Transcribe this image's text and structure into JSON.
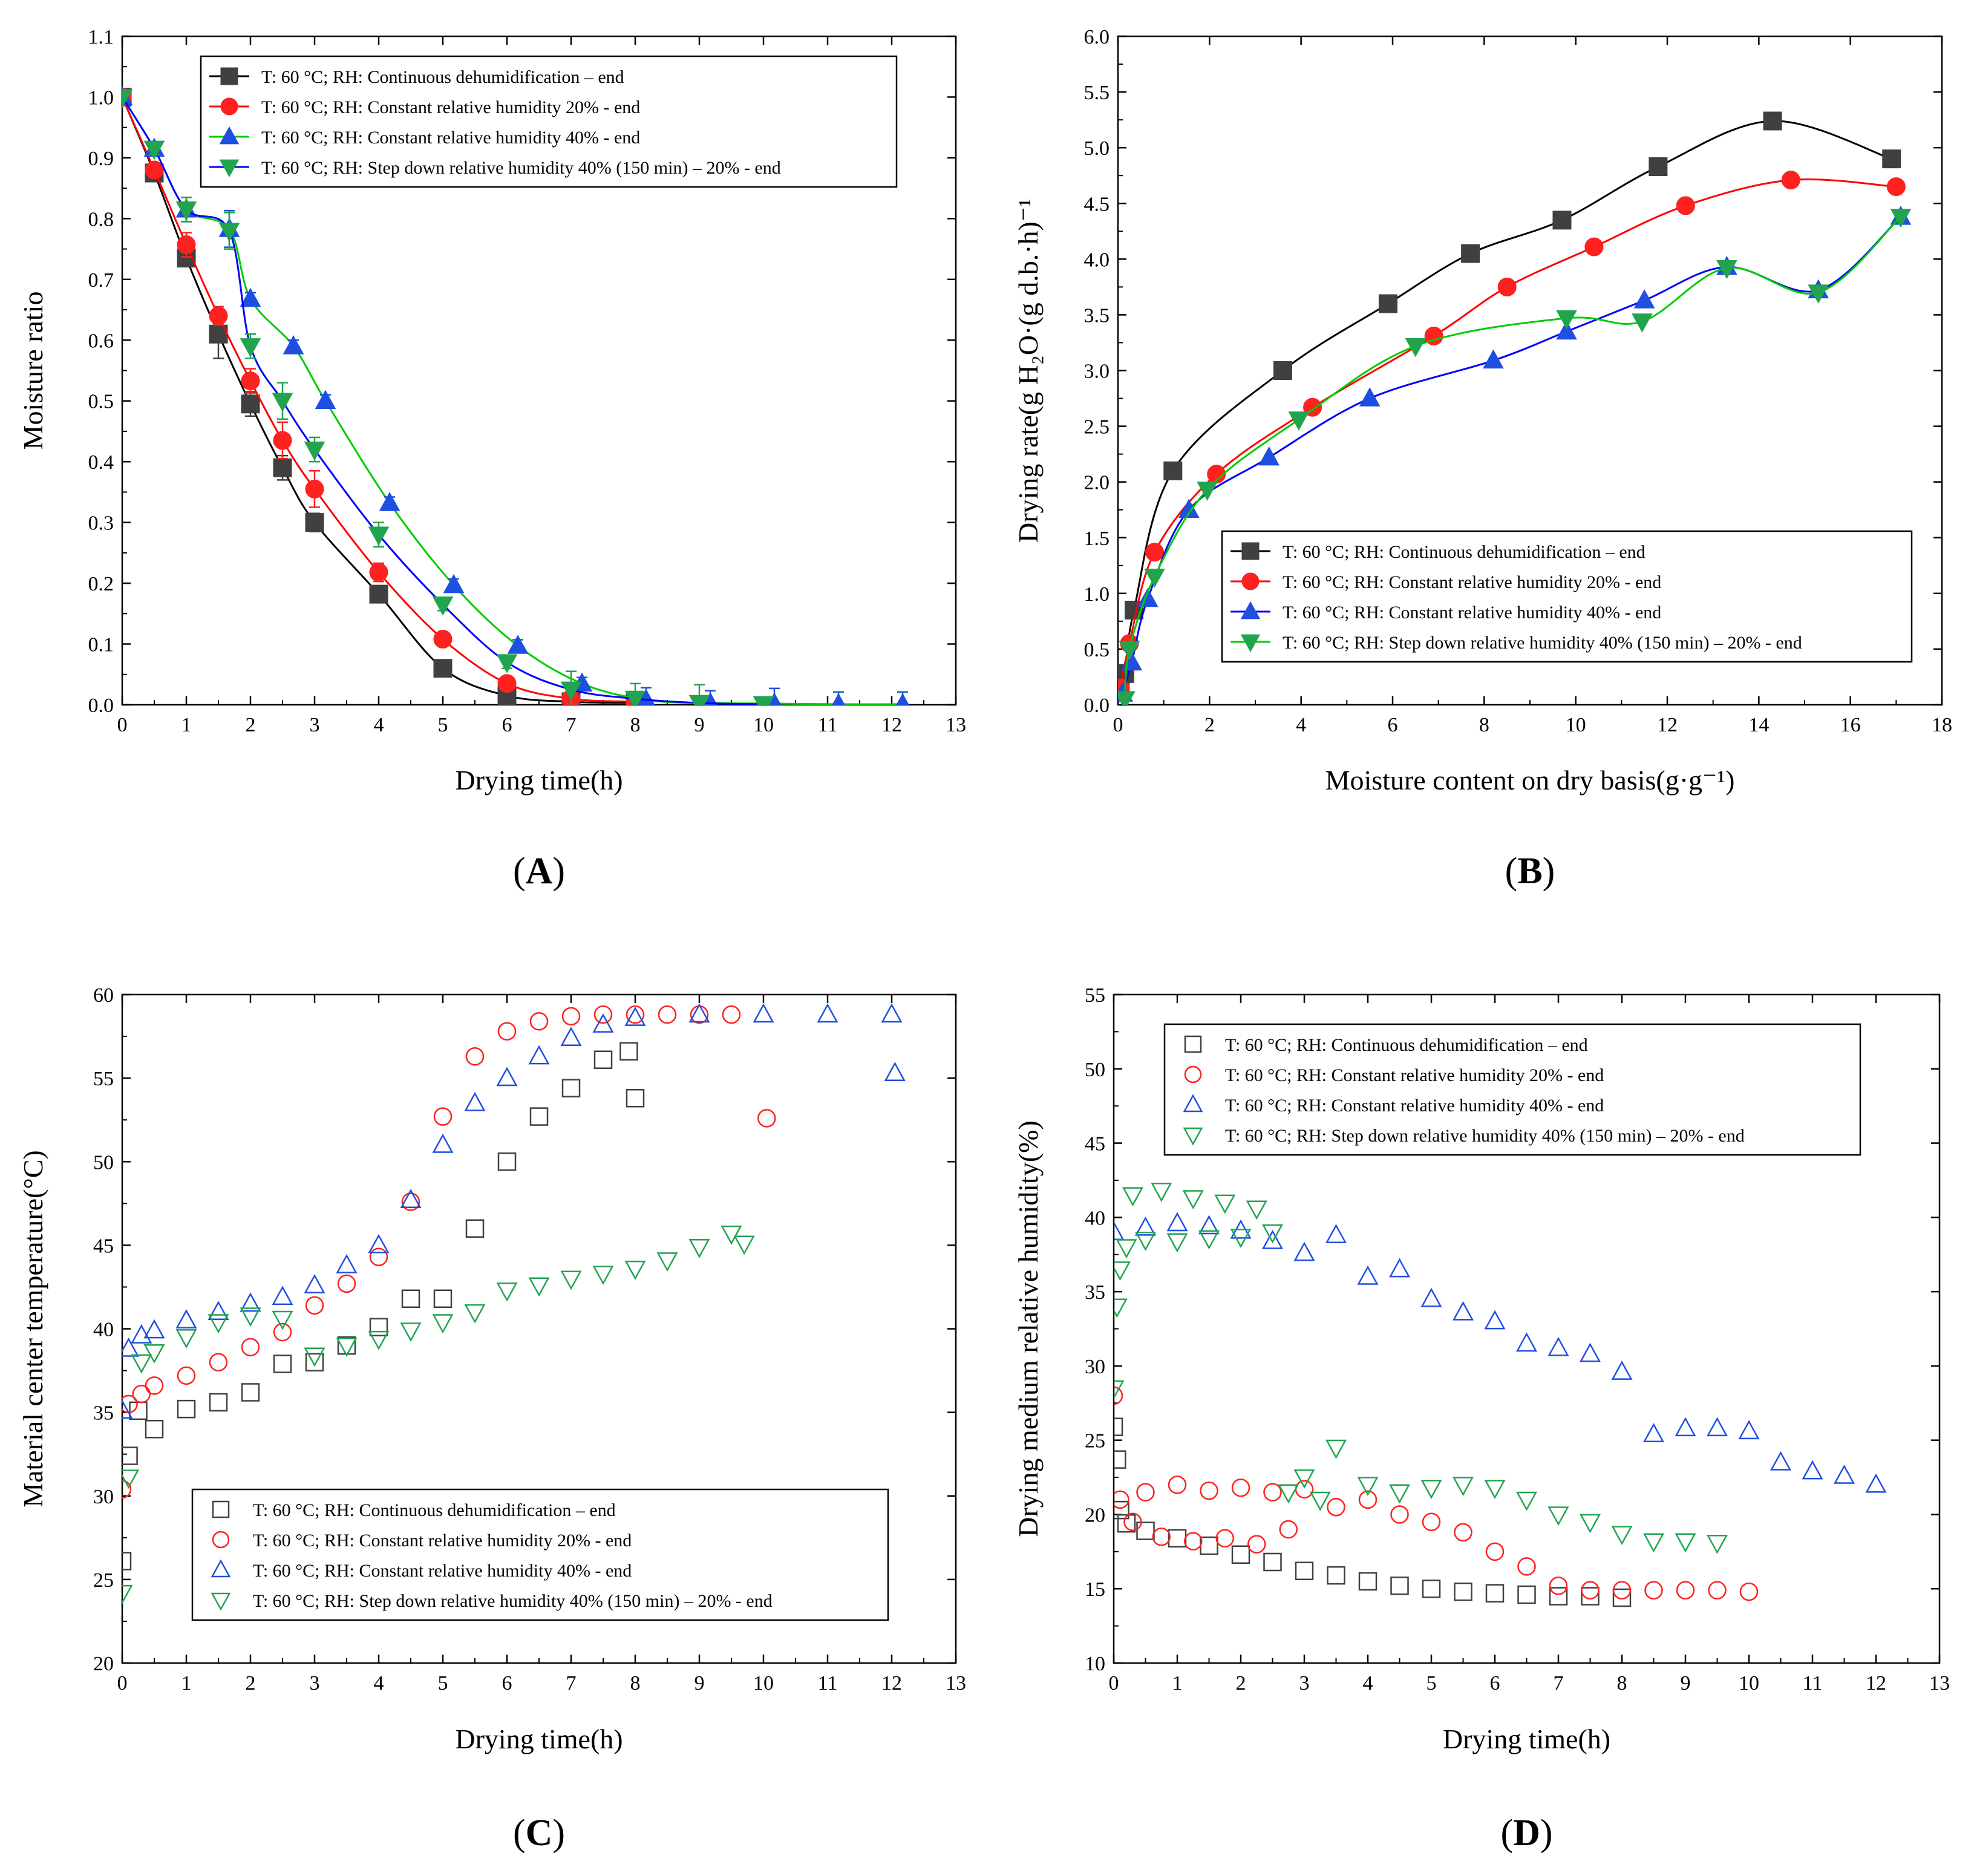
{
  "panels": [
    {
      "id": "A",
      "label": "A",
      "type": "line",
      "xlabel": "Drying time(h)",
      "ylabel": "Moisture ratio",
      "xlim": [
        0,
        13
      ],
      "ylim": [
        0,
        1.1
      ],
      "xticks": [
        0,
        1,
        2,
        3,
        4,
        5,
        6,
        7,
        8,
        9,
        10,
        11,
        12,
        13
      ],
      "yticks": [
        0.0,
        0.1,
        0.2,
        0.3,
        0.4,
        0.5,
        0.6,
        0.7,
        0.8,
        0.9,
        1.0,
        1.1
      ],
      "ytick_decimals": 1,
      "legend_position": "top-center",
      "marker_style": "filled",
      "series": [
        {
          "name": "T: 60 °C; RH: Continuous dehumidification – end",
          "color": "#404040",
          "line_color": "#000000",
          "marker": "square",
          "x": [
            0,
            0.5,
            1,
            1.5,
            2,
            2.5,
            3,
            4,
            5,
            6,
            7,
            8
          ],
          "y": [
            1.0,
            0.875,
            0.735,
            0.61,
            0.495,
            0.39,
            0.3,
            0.182,
            0.06,
            0.015,
            0.005,
            0.003
          ],
          "err": [
            0,
            0.01,
            0.01,
            0.04,
            0.02,
            0.02,
            0.015,
            0.01,
            0.01,
            0.01,
            0.005,
            0.01
          ]
        },
        {
          "name": "T: 60 °C; RH: Constant relative humidity 20% - end",
          "color": "#ff2020",
          "line_color": "#ff0000",
          "marker": "circle",
          "x": [
            0,
            0.5,
            1,
            1.5,
            2,
            2.5,
            3,
            4,
            5,
            6,
            7,
            8
          ],
          "y": [
            1.0,
            0.88,
            0.757,
            0.64,
            0.533,
            0.435,
            0.355,
            0.218,
            0.108,
            0.035,
            0.01,
            0.005
          ],
          "err": [
            0,
            0.01,
            0.02,
            0.015,
            0.02,
            0.03,
            0.03,
            0.015,
            0.01,
            0.01,
            0.01,
            0.01
          ]
        },
        {
          "name": "T: 60 °C; RH: Constant relative humidity 40% - end",
          "color": "#1f4fe0",
          "line_color": "#00cc00",
          "marker": "triangle-up",
          "x": [
            0,
            0.5,
            1,
            1.67,
            2,
            2.67,
            3.17,
            4.17,
            5.17,
            6.17,
            7.17,
            8.17,
            9.17,
            10.17,
            11.17,
            12.17
          ],
          "y": [
            1.0,
            0.915,
            0.815,
            0.783,
            0.668,
            0.59,
            0.5,
            0.332,
            0.197,
            0.097,
            0.035,
            0.008,
            0.003,
            0.002,
            0.001,
            0.001
          ],
          "err": [
            0,
            0.01,
            0.02,
            0.03,
            0.01,
            0.01,
            0.01,
            0.01,
            0.01,
            0.01,
            0.01,
            0.02,
            0.02,
            0.025,
            0.02,
            0.02
          ]
        },
        {
          "name": "T: 60 °C; RH: Step down relative humidity 40% (150 min) – 20% - end",
          "color": "#22a44f",
          "line_color": "#0000ff",
          "marker": "triangle-down",
          "x": [
            0,
            0.5,
            1,
            1.67,
            2,
            2.5,
            3,
            4,
            5,
            6,
            7,
            8,
            9,
            10
          ],
          "y": [
            1.0,
            0.915,
            0.815,
            0.78,
            0.59,
            0.5,
            0.42,
            0.28,
            0.165,
            0.07,
            0.025,
            0.01,
            0.003,
            0.001
          ],
          "err": [
            0,
            0.01,
            0.02,
            0.03,
            0.02,
            0.03,
            0.02,
            0.02,
            0.01,
            0.01,
            0.03,
            0.025,
            0.03,
            0.01
          ]
        }
      ]
    },
    {
      "id": "B",
      "label": "B",
      "type": "line",
      "xlabel": "Moisture content on dry basis(g·g⁻¹)",
      "ylabel": "Drying rate(g H₂O·(g d.b.·h)⁻¹",
      "xlim": [
        0,
        18
      ],
      "ylim": [
        0,
        6.0
      ],
      "xticks": [
        0,
        2,
        4,
        6,
        8,
        10,
        12,
        14,
        16,
        18
      ],
      "yticks": [
        0.0,
        0.5,
        1.0,
        1.5,
        2.0,
        2.5,
        3.0,
        3.5,
        4.0,
        4.5,
        5.0,
        5.5,
        6.0
      ],
      "ytick_decimals": 1,
      "legend_position": "bottom-right",
      "marker_style": "filled",
      "series": [
        {
          "name": "T: 60 °C; RH: Continuous dehumidification – end",
          "color": "#404040",
          "line_color": "#000000",
          "marker": "square",
          "x": [
            0.05,
            0.15,
            0.35,
            1.2,
            3.6,
            5.9,
            7.7,
            9.7,
            11.8,
            14.3,
            16.9
          ],
          "y": [
            0.12,
            0.28,
            0.85,
            2.1,
            3.0,
            3.6,
            4.05,
            4.35,
            4.83,
            5.24,
            4.9
          ]
        },
        {
          "name": "T: 60 °C; RH: Constant relative humidity 20% - end",
          "color": "#ff2020",
          "line_color": "#ff0000",
          "marker": "circle",
          "x": [
            0.05,
            0.25,
            0.8,
            2.15,
            4.25,
            6.9,
            8.5,
            10.4,
            12.4,
            14.7,
            17.0
          ],
          "y": [
            0.15,
            0.55,
            1.37,
            2.07,
            2.67,
            3.31,
            3.75,
            4.11,
            4.48,
            4.71,
            4.65
          ]
        },
        {
          "name": "T: 60 °C; RH: Constant relative humidity 40% - end",
          "color": "#1f4fe0",
          "line_color": "#0000ff",
          "marker": "triangle-up",
          "x": [
            0.1,
            0.3,
            0.65,
            1.55,
            3.3,
            5.5,
            8.2,
            9.8,
            11.5,
            13.3,
            15.3,
            17.1
          ],
          "y": [
            0.1,
            0.38,
            0.95,
            1.75,
            2.22,
            2.75,
            3.09,
            3.35,
            3.63,
            3.93,
            3.72,
            4.38
          ]
        },
        {
          "name": "T: 60 °C; RH: Step down relative humidity 40% (150 min) – 20% - end",
          "color": "#22a44f",
          "line_color": "#00cc00",
          "marker": "triangle-down",
          "x": [
            0.15,
            0.25,
            0.8,
            1.95,
            3.95,
            6.5,
            9.8,
            11.45,
            13.3,
            15.3,
            17.1
          ],
          "y": [
            0.05,
            0.5,
            1.15,
            1.93,
            2.56,
            3.22,
            3.47,
            3.44,
            3.92,
            3.7,
            4.38
          ]
        }
      ]
    },
    {
      "id": "C",
      "label": "C",
      "type": "scatter",
      "xlabel": "Drying time(h)",
      "ylabel": "Material center temperature(°C)",
      "xlim": [
        0,
        13
      ],
      "ylim": [
        20,
        60
      ],
      "xticks": [
        0,
        1,
        2,
        3,
        4,
        5,
        6,
        7,
        8,
        9,
        10,
        11,
        12,
        13
      ],
      "yticks": [
        20,
        25,
        30,
        35,
        40,
        45,
        50,
        55,
        60
      ],
      "ytick_decimals": 0,
      "legend_position": "bottom-center",
      "marker_style": "open",
      "series": [
        {
          "name": "T: 60 °C; RH: Continuous dehumidification – end",
          "color": "#404040",
          "marker": "square",
          "x": [
            0,
            0.1,
            0.25,
            0.5,
            1,
            1.5,
            2,
            2.5,
            3,
            3.5,
            4,
            4.5,
            5,
            5.5,
            6,
            6.5,
            7,
            7.5,
            7.9,
            8
          ],
          "y": [
            26.1,
            32.4,
            35.1,
            34.0,
            35.2,
            35.6,
            36.2,
            37.9,
            38.0,
            39.0,
            40.1,
            41.8,
            41.8,
            46.0,
            50.0,
            52.7,
            54.4,
            56.1,
            56.6,
            53.8
          ]
        },
        {
          "name": "T: 60 °C; RH: Constant relative humidity 20% - end",
          "color": "#ff2020",
          "marker": "circle",
          "x": [
            0,
            0.1,
            0.3,
            0.5,
            1,
            1.5,
            2,
            2.5,
            3,
            3.5,
            4,
            4.5,
            5,
            5.5,
            6,
            6.5,
            7,
            7.5,
            8,
            8.5,
            9,
            9.5,
            10.05
          ],
          "y": [
            30.4,
            35.5,
            36.1,
            36.6,
            37.2,
            38.0,
            38.9,
            39.8,
            41.4,
            42.7,
            44.3,
            47.6,
            52.7,
            56.3,
            57.8,
            58.4,
            58.7,
            58.8,
            58.8,
            58.8,
            58.8,
            58.8,
            52.6
          ]
        },
        {
          "name": "T: 60 °C; RH: Constant relative humidity 40% - end",
          "color": "#1f4fe0",
          "marker": "triangle-up",
          "x": [
            0,
            0.1,
            0.3,
            0.5,
            1,
            1.5,
            2,
            2.5,
            3,
            3.5,
            4,
            4.5,
            5,
            5.5,
            6,
            6.5,
            7,
            7.5,
            8,
            9,
            10,
            11,
            12,
            12.05
          ],
          "y": [
            35.1,
            38.8,
            39.6,
            39.9,
            40.5,
            41.0,
            41.5,
            41.9,
            42.6,
            43.8,
            45.0,
            47.7,
            51.0,
            53.5,
            55.0,
            56.3,
            57.4,
            58.2,
            58.6,
            58.8,
            58.8,
            58.8,
            58.8,
            55.3
          ]
        },
        {
          "name": "T: 60 °C; RH: Step down relative humidity 40% (150 min) – 20% - end",
          "color": "#22a44f",
          "marker": "triangle-down",
          "x": [
            0,
            0.1,
            0.3,
            0.5,
            1,
            1.5,
            2,
            2.5,
            3,
            3.5,
            4,
            4.5,
            5,
            5.5,
            6,
            6.5,
            7,
            7.5,
            8,
            8.5,
            9,
            9.5,
            9.7
          ],
          "y": [
            24.2,
            31.1,
            38.0,
            38.6,
            39.5,
            40.4,
            40.8,
            40.6,
            38.4,
            39.0,
            39.4,
            39.9,
            40.4,
            41.0,
            42.3,
            42.6,
            43.0,
            43.3,
            43.6,
            44.1,
            44.9,
            45.7,
            45.1
          ]
        }
      ]
    },
    {
      "id": "D",
      "label": "D",
      "type": "scatter",
      "xlabel": "Drying time(h)",
      "ylabel": "Drying medium relative humidity(%)",
      "xlim": [
        0,
        13
      ],
      "ylim": [
        10,
        55
      ],
      "xticks": [
        0,
        1,
        2,
        3,
        4,
        5,
        6,
        7,
        8,
        9,
        10,
        11,
        12,
        13
      ],
      "yticks": [
        10,
        15,
        20,
        25,
        30,
        35,
        40,
        45,
        50,
        55
      ],
      "ytick_decimals": 0,
      "legend_position": "top-center",
      "marker_style": "open",
      "series": [
        {
          "name": "T: 60 °C; RH: Continuous dehumidification – end",
          "color": "#404040",
          "marker": "square",
          "x": [
            0,
            0.05,
            0.1,
            0.2,
            0.5,
            1,
            1.5,
            2,
            2.5,
            3,
            3.5,
            4,
            4.5,
            5,
            5.5,
            6,
            6.5,
            7,
            7.5,
            8
          ],
          "y": [
            25.9,
            23.7,
            20.3,
            19.4,
            18.9,
            18.4,
            17.9,
            17.3,
            16.8,
            16.2,
            15.9,
            15.5,
            15.2,
            15.0,
            14.8,
            14.7,
            14.6,
            14.5,
            14.5,
            14.4
          ]
        },
        {
          "name": "T: 60 °C; RH: Constant relative humidity 20% - end",
          "color": "#ff2020",
          "marker": "circle",
          "x": [
            0,
            0.1,
            0.3,
            0.5,
            0.75,
            1,
            1.25,
            1.5,
            1.75,
            2,
            2.25,
            2.5,
            2.75,
            3,
            3.5,
            4,
            4.5,
            5,
            5.5,
            6,
            6.5,
            7,
            7.5,
            8,
            8.5,
            9,
            9.5,
            10
          ],
          "y": [
            28.0,
            21.0,
            19.5,
            21.5,
            18.5,
            22.0,
            18.2,
            21.6,
            18.4,
            21.8,
            18.0,
            21.5,
            19.0,
            21.7,
            20.5,
            21.0,
            20.0,
            19.5,
            18.8,
            17.5,
            16.5,
            15.2,
            14.9,
            14.9,
            14.9,
            14.9,
            14.9,
            14.8
          ]
        },
        {
          "name": "T: 60 °C; RH: Constant relative humidity 40% - end",
          "color": "#1f4fe0",
          "marker": "triangle-up",
          "x": [
            0,
            0.5,
            1,
            1.5,
            2,
            2.5,
            3,
            3.5,
            4,
            4.5,
            5,
            5.5,
            6,
            6.5,
            7,
            7.5,
            8,
            8.5,
            9,
            9.5,
            10,
            10.5,
            11,
            11.5,
            12
          ],
          "y": [
            39.0,
            39.3,
            39.6,
            39.4,
            39.1,
            38.4,
            37.6,
            38.8,
            36.0,
            36.5,
            34.5,
            33.6,
            33.0,
            31.5,
            31.2,
            30.8,
            29.6,
            25.4,
            25.8,
            25.8,
            25.6,
            23.5,
            22.9,
            22.6,
            22.0
          ]
        },
        {
          "name": "T: 60 °C; RH: Step down relative humidity 40% (150 min) – 20% - end",
          "color": "#22a44f",
          "marker": "triangle-down",
          "x": [
            0,
            0.05,
            0.1,
            0.2,
            0.3,
            0.5,
            0.75,
            1,
            1.25,
            1.5,
            1.75,
            2,
            2.25,
            2.5,
            2.75,
            3,
            3.25,
            3.5,
            4,
            4.5,
            5,
            5.5,
            6,
            6.5,
            7,
            7.5,
            8,
            8.5,
            9,
            9.5
          ],
          "y": [
            28.5,
            34.0,
            36.5,
            38.0,
            41.5,
            38.5,
            41.8,
            38.4,
            41.3,
            38.6,
            41.0,
            38.7,
            40.6,
            39.0,
            21.5,
            22.5,
            21.0,
            24.5,
            22.0,
            21.5,
            21.8,
            22.0,
            21.8,
            21.0,
            20.0,
            19.5,
            18.7,
            18.2,
            18.2,
            18.1
          ]
        }
      ]
    }
  ]
}
